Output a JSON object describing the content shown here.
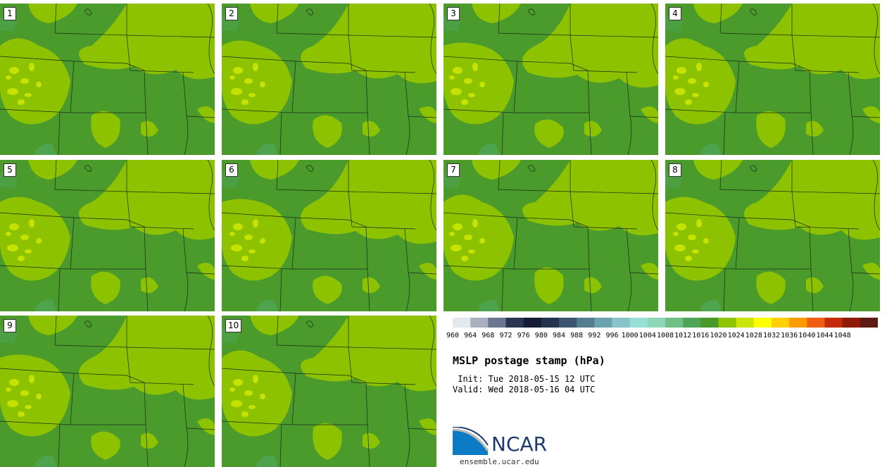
{
  "panels": [
    "1",
    "2",
    "3",
    "4",
    "5",
    "6",
    "7",
    "8",
    "9",
    "10"
  ],
  "colorbar": {
    "labels": [
      "960",
      "964",
      "968",
      "972",
      "976",
      "980",
      "984",
      "988",
      "992",
      "996",
      "1000",
      "1004",
      "1008",
      "1012",
      "1016",
      "1020",
      "1024",
      "1028",
      "1032",
      "1036",
      "1040",
      "1044",
      "1048"
    ],
    "colors": [
      "#e4e8ef",
      "#a9b1c1",
      "#6a7790",
      "#2a3552",
      "#141d33",
      "#24344e",
      "#3c5670",
      "#547d8f",
      "#6aa2ad",
      "#87c5c9",
      "#95dfd6",
      "#8ed6b8",
      "#6fbf86",
      "#4ea558",
      "#48982a",
      "#8ec400",
      "#cbe400",
      "#ffff00",
      "#ffcf00",
      "#ff9900",
      "#f05c10",
      "#c42a08",
      "#8f1a06",
      "#5c1a10"
    ],
    "map_colors": {
      "low": "#4a9a2c",
      "mid": "#8cc200",
      "high": "#c6e200",
      "lowest": "#4ea558"
    }
  },
  "title": "MSLP postage stamp (hPa)",
  "init": " Init: Tue 2018-05-15 12 UTC",
  "valid": "Valid: Wed 2018-05-16 04 UTC",
  "logo": {
    "text": "NCAR",
    "site": "ensemble.ucar.edu"
  }
}
